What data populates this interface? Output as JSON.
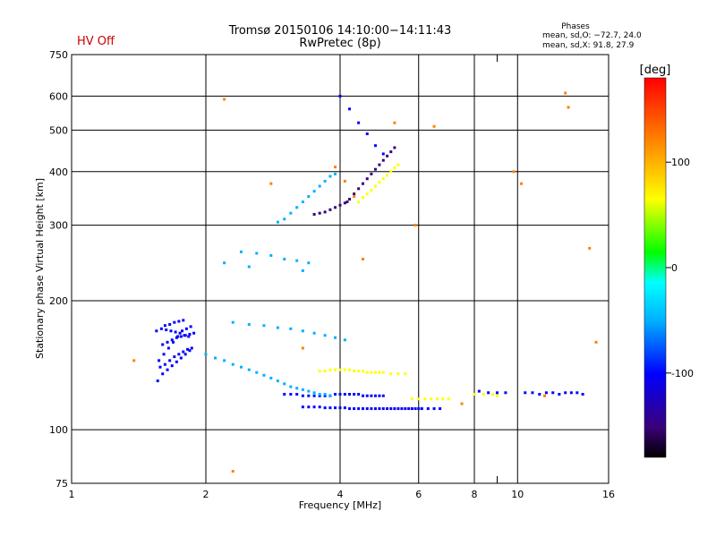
{
  "status_label": "HV Off",
  "status_color": "#cc0000",
  "stats": {
    "heading": "Phases",
    "line_o": "mean, sd,O: −72.7, 24.0",
    "line_x": "mean, sd,X:  91.8, 27.9"
  },
  "chart_data": {
    "type": "scatter",
    "title": "Tromsø 20150106 14:10:00−14:11:43",
    "subtitle": "RwPretec (8p)",
    "xlabel": "Frequency [MHz]",
    "ylabel": "Stationary phase Virtual Height [km]",
    "x_scale": "log2",
    "y_scale": "log",
    "xlim": [
      1,
      16
    ],
    "ylim": [
      75,
      750
    ],
    "x_ticks": [
      1,
      2,
      4,
      6,
      8,
      10,
      16
    ],
    "x_minor_ticks": [
      9
    ],
    "y_ticks": [
      75,
      100,
      200,
      300,
      400,
      500,
      600,
      750
    ],
    "grid": true,
    "colorbar": {
      "label": "[deg]",
      "range": [
        -180,
        180
      ],
      "ticks": [
        100,
        0,
        -100
      ],
      "colors": [
        "#000000",
        "#3a007a",
        "#0000ff",
        "#00b0ff",
        "#00ffff",
        "#00ff00",
        "#ffff00",
        "#ff8000",
        "#ff0000"
      ]
    },
    "series": [
      {
        "x": [
          1.58,
          1.62,
          1.66,
          1.7,
          1.74,
          1.78,
          1.82,
          1.86,
          1.6,
          1.64,
          1.68,
          1.72,
          1.76,
          1.8,
          1.84,
          1.88,
          1.55,
          1.59,
          1.63,
          1.67,
          1.71,
          1.75,
          1.79,
          1.83,
          1.57,
          1.61,
          1.65,
          1.69,
          1.73,
          1.77,
          1.81,
          1.85,
          1.56,
          1.6,
          1.64,
          1.68,
          1.72,
          1.76,
          1.8,
          1.84,
          1.62,
          1.66,
          1.7,
          1.74,
          1.78
        ],
        "y": [
          140,
          142,
          145,
          148,
          150,
          152,
          154,
          155,
          158,
          160,
          162,
          164,
          165,
          166,
          167,
          168,
          170,
          172,
          171,
          170,
          169,
          168,
          166,
          165,
          145,
          150,
          155,
          160,
          165,
          170,
          172,
          174,
          130,
          135,
          138,
          141,
          144,
          147,
          150,
          153,
          175,
          176,
          178,
          179,
          180
        ],
        "phase": -110
      },
      {
        "x": [
          3.3,
          3.4,
          3.5,
          3.6,
          3.7,
          3.8,
          3.9,
          4.0,
          4.1,
          4.2,
          4.3,
          4.4,
          4.5,
          4.6,
          4.7,
          4.8,
          4.9,
          5.0,
          5.1,
          5.2,
          5.3,
          5.4,
          5.5,
          5.6,
          5.7,
          5.8,
          5.9,
          6.0,
          6.1,
          6.3,
          6.5,
          6.7
        ],
        "y": [
          113,
          113,
          113,
          113,
          112.5,
          112.5,
          112.5,
          112.5,
          112.5,
          112,
          112,
          112,
          112,
          112,
          112,
          112,
          112,
          112,
          112,
          112,
          112,
          112,
          112,
          112,
          112,
          112,
          112,
          112,
          112,
          112,
          112,
          112
        ],
        "phase": -100
      },
      {
        "x": [
          3.0,
          3.1,
          3.2,
          3.3,
          3.4,
          3.5,
          3.6,
          3.7,
          3.8,
          3.9,
          4.0,
          4.1,
          4.2,
          4.3,
          4.4,
          4.5,
          4.6,
          4.7,
          4.8,
          4.9,
          5.0
        ],
        "y": [
          121,
          121,
          121,
          120,
          120,
          120,
          120,
          120,
          120,
          121,
          121,
          121,
          121,
          121,
          121,
          120,
          120,
          120,
          120,
          120,
          120
        ],
        "phase": -100
      },
      {
        "x": [
          3.5,
          3.6,
          3.7,
          3.8,
          3.9,
          4.0,
          4.1,
          4.15,
          4.2,
          4.3,
          4.4,
          4.5,
          4.6,
          4.7,
          4.8,
          4.9,
          5.0,
          5.1,
          5.2,
          5.3
        ],
        "y": [
          318,
          320,
          322,
          326,
          330,
          334,
          338,
          340,
          345,
          355,
          365,
          375,
          385,
          395,
          405,
          415,
          425,
          435,
          445,
          455
        ],
        "phase": -135
      },
      {
        "x": [
          4.4,
          4.5,
          4.6,
          4.7,
          4.8,
          4.9,
          5.0,
          5.1,
          5.2,
          5.3,
          5.4
        ],
        "y": [
          340,
          348,
          355,
          362,
          370,
          378,
          385,
          392,
          400,
          408,
          415
        ],
        "phase": 100
      },
      {
        "x": [
          3.6,
          3.7,
          3.8,
          3.9,
          4.0,
          4.1,
          4.2,
          4.3,
          4.4,
          4.5,
          4.6,
          4.7,
          4.8,
          4.9,
          5.0,
          5.2,
          5.4,
          5.6
        ],
        "y": [
          137,
          137,
          138,
          138,
          138,
          138,
          138,
          137,
          137,
          137,
          136,
          136,
          136,
          136,
          136,
          135,
          135,
          135
        ],
        "phase": 90
      },
      {
        "x": [
          5.8,
          6.0,
          6.2,
          6.4,
          6.6,
          6.8,
          7.0
        ],
        "y": [
          118,
          118,
          118,
          118,
          118,
          118,
          118
        ],
        "phase": 70
      },
      {
        "x": [
          8.2,
          8.6,
          9.0,
          9.4,
          10.4,
          10.8,
          11.2,
          11.6,
          12.0,
          12.4,
          12.8,
          13.2,
          13.6,
          14.0
        ],
        "y": [
          123,
          122,
          122,
          122,
          122,
          122,
          121,
          122,
          122,
          121,
          122,
          122,
          122,
          121
        ],
        "phase": -95
      },
      {
        "x": [
          8.0,
          8.4,
          8.8,
          9.0
        ],
        "y": [
          121,
          121,
          121,
          120
        ],
        "phase": 110
      },
      {
        "x": [
          2.0,
          2.1,
          2.2,
          2.3,
          2.4,
          2.5,
          2.6,
          2.7,
          2.8,
          2.9,
          3.0,
          3.1,
          3.2,
          3.3,
          3.4,
          3.5,
          3.6,
          3.7,
          3.8
        ],
        "y": [
          150,
          147,
          145,
          142,
          140,
          138,
          136,
          134,
          132,
          130,
          128,
          126,
          125,
          124,
          123,
          122,
          121,
          121,
          120
        ],
        "phase": -40
      },
      {
        "x": [
          2.9,
          3.0,
          3.1,
          3.2,
          3.3,
          3.4,
          3.5,
          3.6,
          3.7,
          3.8,
          3.9
        ],
        "y": [
          305,
          310,
          320,
          330,
          340,
          350,
          360,
          370,
          380,
          390,
          395
        ],
        "phase": -40
      },
      {
        "x": [
          2.4,
          2.6,
          2.8,
          3.0,
          3.2,
          3.4,
          2.2,
          2.5,
          3.3
        ],
        "y": [
          260,
          258,
          255,
          250,
          248,
          245,
          245,
          240,
          235
        ],
        "phase": -55
      },
      {
        "x": [
          2.3,
          2.5,
          2.7,
          2.9,
          3.1,
          3.3,
          3.5,
          3.7,
          3.9,
          4.1
        ],
        "y": [
          178,
          176,
          175,
          173,
          172,
          170,
          168,
          166,
          164,
          162
        ],
        "phase": -30
      },
      {
        "x": [
          4.0,
          4.2,
          4.4,
          4.6,
          4.8,
          5.0
        ],
        "y": [
          600,
          560,
          520,
          490,
          460,
          440
        ],
        "phase": -110
      },
      {
        "x": [
          1.38,
          2.2,
          2.3,
          3.9,
          4.1,
          4.3,
          5.9,
          6.5,
          9.8,
          10.2,
          13.0,
          14.5,
          15.0,
          7.5,
          2.8,
          3.3,
          4.5,
          5.3,
          11.5,
          12.8
        ],
        "y": [
          145,
          590,
          80,
          410,
          380,
          350,
          300,
          510,
          400,
          375,
          565,
          265,
          160,
          115,
          375,
          155,
          250,
          520,
          120,
          610
        ],
        "phase": 150
      }
    ]
  }
}
